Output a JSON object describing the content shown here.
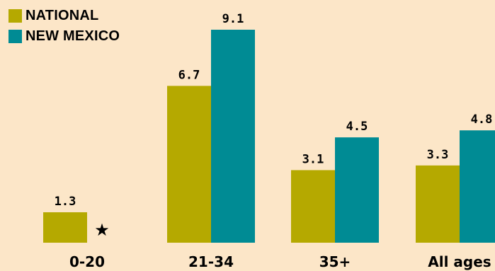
{
  "chart_data": {
    "type": "bar",
    "categories": [
      "0-20",
      "21-34",
      "35+",
      "All ages"
    ],
    "series": [
      {
        "name": "NATIONAL",
        "color": "#b5a900",
        "values": [
          1.3,
          6.7,
          3.1,
          3.3
        ]
      },
      {
        "name": "NEW MEXICO",
        "color": "#008b94",
        "values": [
          null,
          9.1,
          4.5,
          4.8
        ]
      }
    ],
    "value_labels": [
      [
        "1.3",
        "6.7",
        "3.1",
        "3.3"
      ],
      [
        "",
        "9.1",
        "4.5",
        "4.8"
      ]
    ],
    "missing_marker": "★",
    "title": "",
    "xlabel": "",
    "ylabel": "",
    "ylim": [
      0,
      9.1
    ],
    "grid": false,
    "legend_position": "top-left"
  }
}
